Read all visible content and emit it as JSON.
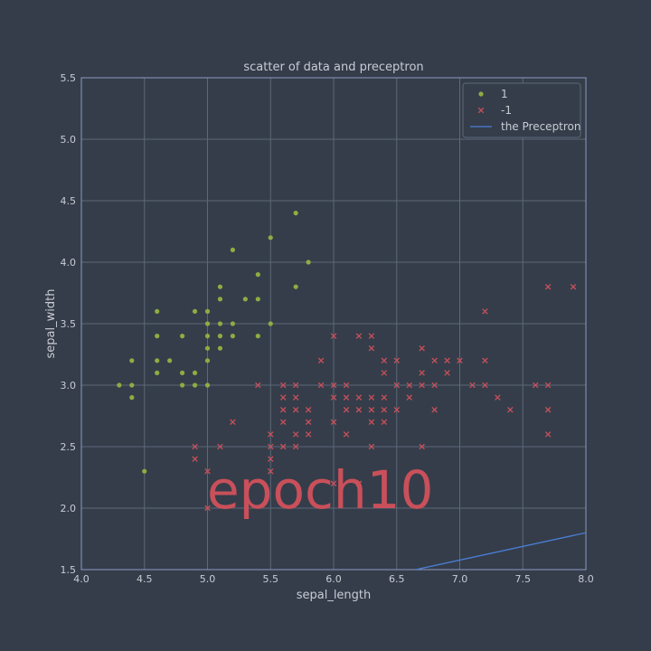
{
  "chart_data": {
    "type": "scatter",
    "title": "scatter of data and preceptron",
    "xlabel": "sepal_length",
    "ylabel": "sepal_width",
    "xlim": [
      4.0,
      8.0
    ],
    "ylim": [
      1.5,
      5.5
    ],
    "xticks": [
      "4.0",
      "4.5",
      "5.0",
      "5.5",
      "6.0",
      "6.5",
      "7.0",
      "7.5",
      "8.0"
    ],
    "yticks": [
      "1.5",
      "2.0",
      "2.5",
      "3.0",
      "3.5",
      "4.0",
      "4.5",
      "5.0",
      "5.5"
    ],
    "grid": true,
    "legend_position": "top-right",
    "annotation": "epoch10",
    "series": [
      {
        "name": "1",
        "kind": "scatter",
        "marker": "circle",
        "color": "#8fac42",
        "points": [
          [
            4.3,
            3.0
          ],
          [
            4.4,
            2.9
          ],
          [
            4.4,
            3.0
          ],
          [
            4.4,
            3.2
          ],
          [
            4.5,
            2.3
          ],
          [
            4.6,
            3.1
          ],
          [
            4.6,
            3.2
          ],
          [
            4.6,
            3.4
          ],
          [
            4.6,
            3.6
          ],
          [
            4.7,
            3.2
          ],
          [
            4.8,
            3.0
          ],
          [
            4.8,
            3.1
          ],
          [
            4.8,
            3.4
          ],
          [
            4.9,
            3.0
          ],
          [
            4.9,
            3.1
          ],
          [
            4.9,
            3.6
          ],
          [
            5.0,
            3.0
          ],
          [
            5.0,
            3.2
          ],
          [
            5.0,
            3.3
          ],
          [
            5.0,
            3.4
          ],
          [
            5.0,
            3.5
          ],
          [
            5.0,
            3.6
          ],
          [
            5.1,
            3.3
          ],
          [
            5.1,
            3.4
          ],
          [
            5.1,
            3.5
          ],
          [
            5.1,
            3.7
          ],
          [
            5.1,
            3.8
          ],
          [
            5.2,
            3.4
          ],
          [
            5.2,
            3.5
          ],
          [
            5.2,
            4.1
          ],
          [
            5.3,
            3.7
          ],
          [
            5.4,
            3.4
          ],
          [
            5.4,
            3.7
          ],
          [
            5.4,
            3.9
          ],
          [
            5.5,
            3.5
          ],
          [
            5.5,
            4.2
          ],
          [
            5.7,
            3.8
          ],
          [
            5.7,
            4.4
          ],
          [
            5.8,
            4.0
          ]
        ]
      },
      {
        "name": "-1",
        "kind": "scatter",
        "marker": "x",
        "color": "#c9505a",
        "points": [
          [
            4.9,
            2.4
          ],
          [
            4.9,
            2.5
          ],
          [
            5.0,
            2.0
          ],
          [
            5.0,
            2.3
          ],
          [
            5.1,
            2.5
          ],
          [
            5.2,
            2.7
          ],
          [
            5.4,
            3.0
          ],
          [
            5.5,
            2.3
          ],
          [
            5.5,
            2.4
          ],
          [
            5.5,
            2.5
          ],
          [
            5.5,
            2.6
          ],
          [
            5.6,
            2.5
          ],
          [
            5.6,
            2.7
          ],
          [
            5.6,
            2.8
          ],
          [
            5.6,
            2.9
          ],
          [
            5.6,
            3.0
          ],
          [
            5.7,
            2.5
          ],
          [
            5.7,
            2.6
          ],
          [
            5.7,
            2.8
          ],
          [
            5.7,
            2.9
          ],
          [
            5.7,
            3.0
          ],
          [
            5.8,
            2.6
          ],
          [
            5.8,
            2.7
          ],
          [
            5.8,
            2.8
          ],
          [
            5.9,
            3.0
          ],
          [
            5.9,
            3.2
          ],
          [
            6.0,
            2.2
          ],
          [
            6.0,
            2.7
          ],
          [
            6.0,
            2.9
          ],
          [
            6.0,
            3.0
          ],
          [
            6.0,
            3.4
          ],
          [
            6.1,
            2.6
          ],
          [
            6.1,
            2.8
          ],
          [
            6.1,
            2.9
          ],
          [
            6.1,
            3.0
          ],
          [
            6.2,
            2.2
          ],
          [
            6.2,
            2.8
          ],
          [
            6.2,
            2.9
          ],
          [
            6.2,
            3.4
          ],
          [
            6.3,
            2.5
          ],
          [
            6.3,
            2.7
          ],
          [
            6.3,
            2.8
          ],
          [
            6.3,
            2.9
          ],
          [
            6.3,
            3.3
          ],
          [
            6.3,
            3.4
          ],
          [
            6.4,
            2.7
          ],
          [
            6.4,
            2.8
          ],
          [
            6.4,
            2.9
          ],
          [
            6.4,
            3.1
          ],
          [
            6.4,
            3.2
          ],
          [
            6.5,
            2.8
          ],
          [
            6.5,
            3.0
          ],
          [
            6.5,
            3.2
          ],
          [
            6.6,
            2.9
          ],
          [
            6.6,
            3.0
          ],
          [
            6.7,
            2.5
          ],
          [
            6.7,
            3.0
          ],
          [
            6.7,
            3.1
          ],
          [
            6.7,
            3.3
          ],
          [
            6.8,
            2.8
          ],
          [
            6.8,
            3.0
          ],
          [
            6.8,
            3.2
          ],
          [
            6.9,
            3.1
          ],
          [
            6.9,
            3.2
          ],
          [
            7.0,
            3.2
          ],
          [
            7.1,
            3.0
          ],
          [
            7.2,
            3.0
          ],
          [
            7.2,
            3.2
          ],
          [
            7.2,
            3.6
          ],
          [
            7.3,
            2.9
          ],
          [
            7.4,
            2.8
          ],
          [
            7.6,
            3.0
          ],
          [
            7.7,
            2.6
          ],
          [
            7.7,
            2.8
          ],
          [
            7.7,
            3.0
          ],
          [
            7.7,
            3.8
          ],
          [
            7.9,
            3.8
          ]
        ]
      },
      {
        "name": "the Preceptron",
        "kind": "line",
        "color": "#4a7fd6",
        "points": [
          [
            6.65,
            1.5
          ],
          [
            8.0,
            1.8
          ]
        ]
      }
    ]
  }
}
